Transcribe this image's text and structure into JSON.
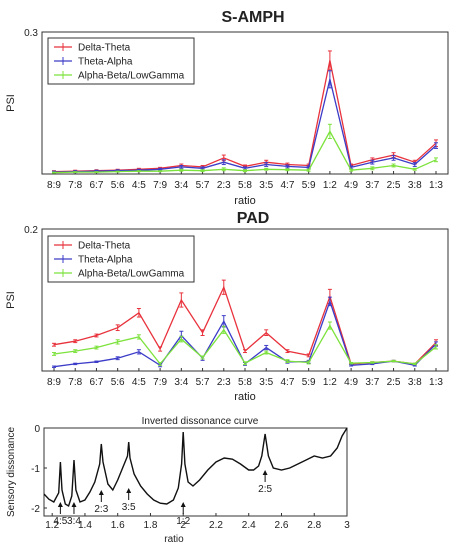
{
  "chart_data": [
    {
      "type": "line",
      "title": "S-AMPH",
      "xlabel": "ratio",
      "ylabel": "PSI",
      "ylim": [
        0,
        0.3
      ],
      "y_ticks": [
        "0.3"
      ],
      "categories": [
        "8:9",
        "7:8",
        "6:7",
        "5:6",
        "4:5",
        "7:9",
        "3:4",
        "5:7",
        "2:3",
        "5:8",
        "3:5",
        "4:7",
        "5:9",
        "1:2",
        "4:9",
        "3:7",
        "2:5",
        "3:8",
        "1:3"
      ],
      "legend_position": "top-left",
      "series": [
        {
          "name": "Delta-Theta",
          "color": "#e8323c",
          "values": [
            0.005,
            0.006,
            0.007,
            0.008,
            0.01,
            0.012,
            0.018,
            0.015,
            0.034,
            0.016,
            0.025,
            0.02,
            0.018,
            0.24,
            0.018,
            0.03,
            0.04,
            0.025,
            0.065
          ],
          "errors": [
            0.002,
            0.002,
            0.002,
            0.002,
            0.002,
            0.002,
            0.003,
            0.003,
            0.006,
            0.003,
            0.004,
            0.003,
            0.003,
            0.02,
            0.003,
            0.004,
            0.005,
            0.004,
            0.007
          ]
        },
        {
          "name": "Theta-Alpha",
          "color": "#3c3cc8",
          "values": [
            0.004,
            0.005,
            0.006,
            0.007,
            0.008,
            0.01,
            0.015,
            0.012,
            0.025,
            0.012,
            0.02,
            0.016,
            0.014,
            0.2,
            0.014,
            0.025,
            0.034,
            0.02,
            0.06
          ],
          "errors": [
            0.002,
            0.002,
            0.002,
            0.002,
            0.002,
            0.002,
            0.003,
            0.003,
            0.005,
            0.003,
            0.004,
            0.003,
            0.003,
            0.018,
            0.003,
            0.004,
            0.005,
            0.004,
            0.006
          ]
        },
        {
          "name": "Alpha-Beta/LowGamma",
          "color": "#7ce23c",
          "values": [
            0.003,
            0.004,
            0.004,
            0.005,
            0.006,
            0.006,
            0.008,
            0.007,
            0.01,
            0.007,
            0.01,
            0.009,
            0.008,
            0.09,
            0.008,
            0.012,
            0.018,
            0.01,
            0.03
          ],
          "errors": [
            0.001,
            0.001,
            0.001,
            0.001,
            0.001,
            0.001,
            0.002,
            0.002,
            0.003,
            0.002,
            0.002,
            0.002,
            0.002,
            0.015,
            0.002,
            0.003,
            0.003,
            0.002,
            0.004
          ]
        }
      ]
    },
    {
      "type": "line",
      "title": "PAD",
      "xlabel": "ratio",
      "ylabel": "PSI",
      "ylim": [
        0,
        0.2
      ],
      "y_ticks": [
        "0.2"
      ],
      "categories": [
        "8:9",
        "7:8",
        "6:7",
        "5:6",
        "4:5",
        "7:9",
        "3:4",
        "5:7",
        "2:3",
        "5:8",
        "3:5",
        "4:7",
        "5:9",
        "1:2",
        "4:9",
        "3:7",
        "2:5",
        "3:8",
        "1:3"
      ],
      "legend_position": "top-left",
      "series": [
        {
          "name": "Delta-Theta",
          "color": "#e8323c",
          "values": [
            0.037,
            0.042,
            0.05,
            0.061,
            0.082,
            0.031,
            0.1,
            0.054,
            0.118,
            0.028,
            0.054,
            0.028,
            0.022,
            0.105,
            0.01,
            0.012,
            0.014,
            0.01,
            0.04
          ],
          "errors": [
            0.002,
            0.002,
            0.002,
            0.004,
            0.006,
            0.003,
            0.01,
            0.004,
            0.01,
            0.002,
            0.004,
            0.002,
            0.002,
            0.01,
            0.001,
            0.001,
            0.001,
            0.001,
            0.004
          ]
        },
        {
          "name": "Theta-Alpha",
          "color": "#3c3cc8",
          "values": [
            0.006,
            0.01,
            0.013,
            0.018,
            0.027,
            0.008,
            0.05,
            0.018,
            0.07,
            0.01,
            0.033,
            0.013,
            0.013,
            0.098,
            0.008,
            0.01,
            0.014,
            0.008,
            0.038
          ],
          "errors": [
            0.001,
            0.001,
            0.001,
            0.002,
            0.003,
            0.002,
            0.006,
            0.003,
            0.008,
            0.002,
            0.003,
            0.002,
            0.002,
            0.006,
            0.001,
            0.001,
            0.001,
            0.001,
            0.003
          ]
        },
        {
          "name": "Alpha-Beta/LowGamma",
          "color": "#7ce23c",
          "values": [
            0.024,
            0.028,
            0.033,
            0.041,
            0.048,
            0.01,
            0.045,
            0.019,
            0.058,
            0.011,
            0.026,
            0.014,
            0.012,
            0.064,
            0.011,
            0.012,
            0.014,
            0.01,
            0.034
          ],
          "errors": [
            0.002,
            0.002,
            0.002,
            0.003,
            0.003,
            0.002,
            0.004,
            0.002,
            0.005,
            0.002,
            0.002,
            0.002,
            0.002,
            0.005,
            0.001,
            0.001,
            0.001,
            0.001,
            0.003
          ]
        }
      ]
    },
    {
      "type": "line",
      "title": "Inverted dissonance curve",
      "xlabel": "ratio",
      "ylabel": "Sensory dissonance",
      "xlim": [
        1.15,
        3.0
      ],
      "ylim": [
        -2.2,
        0
      ],
      "x_ticks": [
        "1.2",
        "1.4",
        "1.6",
        "1.8",
        "2",
        "2.2",
        "2.4",
        "2.6",
        "2.8",
        "3"
      ],
      "y_ticks": [
        "0",
        "-1",
        "-2"
      ],
      "curve": {
        "x": [
          1.15,
          1.18,
          1.21,
          1.24,
          1.25,
          1.26,
          1.28,
          1.3,
          1.32,
          1.333,
          1.345,
          1.37,
          1.4,
          1.43,
          1.46,
          1.49,
          1.5,
          1.51,
          1.54,
          1.57,
          1.6,
          1.63,
          1.66,
          1.667,
          1.675,
          1.7,
          1.74,
          1.78,
          1.82,
          1.86,
          1.9,
          1.94,
          1.97,
          1.99,
          2.0,
          2.01,
          2.03,
          2.06,
          2.1,
          2.15,
          2.2,
          2.25,
          2.3,
          2.35,
          2.4,
          2.43,
          2.46,
          2.48,
          2.5,
          2.52,
          2.55,
          2.6,
          2.65,
          2.7,
          2.75,
          2.8,
          2.85,
          2.9,
          2.94,
          2.97,
          3.0
        ],
        "y": [
          -1.65,
          -1.78,
          -1.85,
          -1.62,
          -0.85,
          -1.55,
          -1.9,
          -1.95,
          -1.7,
          -0.8,
          -1.55,
          -1.85,
          -1.8,
          -1.6,
          -1.35,
          -0.9,
          -0.4,
          -0.85,
          -1.4,
          -1.55,
          -1.3,
          -1.0,
          -0.7,
          -0.35,
          -0.75,
          -1.15,
          -1.45,
          -1.65,
          -1.8,
          -1.88,
          -1.9,
          -1.8,
          -1.5,
          -0.9,
          -0.1,
          -0.9,
          -1.35,
          -1.45,
          -1.3,
          -1.05,
          -0.85,
          -0.75,
          -0.78,
          -0.9,
          -1.05,
          -1.05,
          -0.95,
          -0.7,
          -0.15,
          -0.7,
          -1.0,
          -1.05,
          -1.0,
          -0.9,
          -0.8,
          -0.7,
          -0.75,
          -0.7,
          -0.5,
          -0.2,
          0.0
        ]
      },
      "annotations": [
        {
          "label": "4:5",
          "x": 1.25,
          "y": -1.85
        },
        {
          "label": "3:4",
          "x": 1.333,
          "y": -1.85
        },
        {
          "label": "2:3",
          "x": 1.5,
          "y": -1.55
        },
        {
          "label": "3:5",
          "x": 1.667,
          "y": -1.5
        },
        {
          "label": "1:2",
          "x": 2.0,
          "y": -1.85
        },
        {
          "label": "2:5",
          "x": 2.5,
          "y": -1.05
        }
      ]
    }
  ]
}
